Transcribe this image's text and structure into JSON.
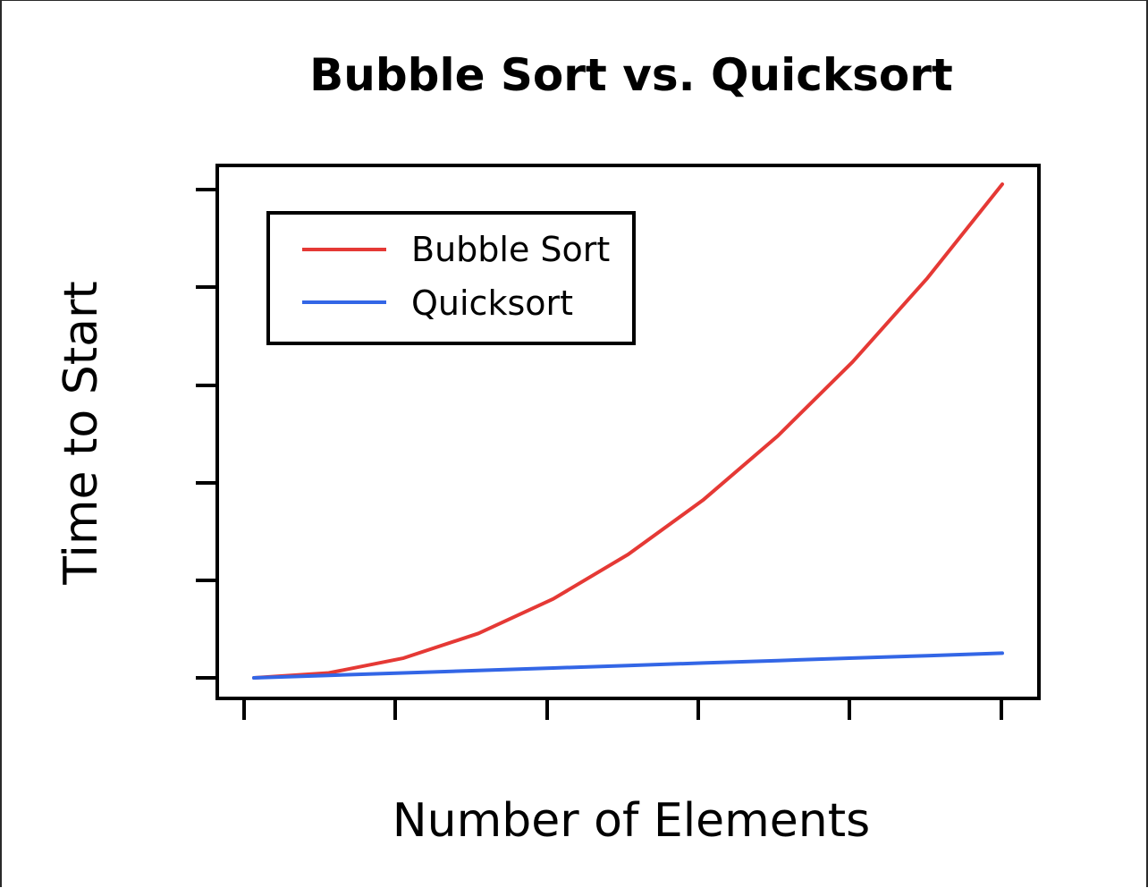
{
  "chart_data": {
    "type": "line",
    "title": "Bubble Sort vs. Quicksort",
    "xlabel": "Number of Elements",
    "ylabel": "Time to Start",
    "x_ticks": 6,
    "y_ticks": 6,
    "tick_labels_shown": false,
    "grid": false,
    "legend_position": "top-left",
    "series": [
      {
        "name": "Bubble Sort",
        "color": "#e53935",
        "x": [
          0,
          10,
          20,
          30,
          40,
          50,
          60,
          70,
          80,
          90,
          100
        ],
        "y": [
          0,
          1,
          4,
          9,
          16,
          25,
          36,
          49,
          64,
          81,
          100
        ]
      },
      {
        "name": "Quicksort",
        "color": "#3366e6",
        "x": [
          0,
          10,
          20,
          30,
          40,
          50,
          60,
          70,
          80,
          90,
          100
        ],
        "y": [
          0,
          0.5,
          1,
          1.5,
          2,
          2.5,
          3,
          3.5,
          4,
          4.5,
          5
        ]
      }
    ]
  }
}
